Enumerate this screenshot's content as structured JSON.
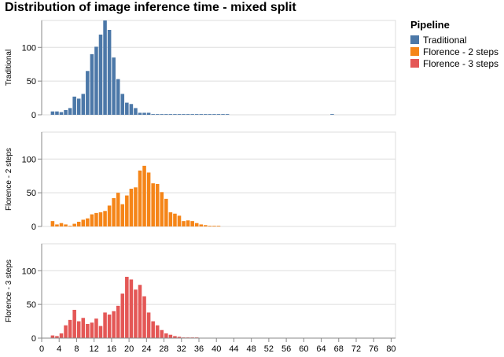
{
  "chart_data": {
    "type": "bar",
    "title": "Distribution of image inference time - mixed split",
    "x_ticks": [
      0,
      4,
      8,
      12,
      16,
      20,
      24,
      28,
      32,
      36,
      40,
      44,
      48,
      52,
      56,
      60,
      64,
      68,
      72,
      76,
      80
    ],
    "xlim": [
      0,
      81
    ],
    "ylim": [
      0,
      140
    ],
    "y_ticks": [
      0,
      50,
      100
    ],
    "bin_width": 1,
    "grid": true,
    "legend": {
      "title": "Pipeline",
      "placement": "right",
      "entries": [
        "Traditional",
        "Florence - 2 steps",
        "Florence - 3 steps"
      ]
    },
    "series": [
      {
        "name": "Traditional",
        "color": "#4c78a8",
        "facet_label": "Traditional",
        "x": [
          2,
          3,
          4,
          5,
          6,
          7,
          8,
          9,
          10,
          11,
          12,
          13,
          14,
          15,
          16,
          17,
          18,
          19,
          20,
          21,
          22,
          23,
          24,
          25,
          26,
          27,
          28,
          29,
          30,
          31,
          32,
          33,
          34,
          35,
          36,
          37,
          38,
          39,
          40,
          41,
          42,
          43,
          44,
          45,
          46,
          47,
          48,
          49,
          50,
          51,
          52,
          53,
          54,
          55,
          56,
          57,
          58,
          59,
          60,
          61,
          62,
          63,
          64,
          65,
          66,
          67,
          68,
          69,
          70,
          71,
          72,
          73,
          74,
          75,
          76,
          77,
          78,
          79,
          80
        ],
        "values": [
          5,
          5,
          4,
          7,
          10,
          27,
          24,
          31,
          65,
          90,
          101,
          119,
          140,
          126,
          85,
          53,
          31,
          18,
          16,
          10,
          3,
          3,
          3,
          1,
          1,
          1,
          1,
          1,
          1,
          1,
          1,
          1,
          1,
          1,
          1,
          1,
          1,
          1,
          1,
          1,
          1,
          0,
          0,
          0,
          0,
          0,
          0,
          0,
          0,
          0,
          0,
          0,
          0,
          0,
          0,
          0,
          0,
          0,
          0,
          0,
          0,
          0,
          0,
          0,
          1,
          0,
          0,
          0,
          0,
          0,
          0,
          0,
          0,
          0,
          0,
          0,
          0,
          0,
          0
        ]
      },
      {
        "name": "Florence - 2 steps",
        "color": "#f58518",
        "facet_label": "Florence - 2 steps",
        "x": [
          2,
          3,
          4,
          5,
          6,
          7,
          8,
          9,
          10,
          11,
          12,
          13,
          14,
          15,
          16,
          17,
          18,
          19,
          20,
          21,
          22,
          23,
          24,
          25,
          26,
          27,
          28,
          29,
          30,
          31,
          32,
          33,
          34,
          35,
          36,
          37,
          38,
          39,
          40,
          41,
          42,
          43,
          44,
          45,
          46,
          47,
          48,
          49,
          50,
          51,
          52,
          53,
          54,
          55,
          56,
          57,
          58,
          59,
          60,
          61,
          62,
          63,
          64,
          65,
          66,
          67,
          68,
          69,
          70,
          71,
          72,
          73,
          74,
          75,
          76,
          77,
          78,
          79,
          80
        ],
        "values": [
          8,
          3,
          5,
          3,
          1,
          4,
          7,
          10,
          12,
          18,
          20,
          21,
          23,
          31,
          42,
          50,
          33,
          46,
          56,
          58,
          83,
          90,
          80,
          64,
          63,
          51,
          41,
          21,
          19,
          16,
          8,
          9,
          8,
          5,
          3,
          2,
          1,
          1,
          1,
          0,
          0,
          0,
          0,
          0,
          0,
          0,
          0,
          0,
          0,
          0,
          0,
          0,
          0,
          0,
          0,
          0,
          0,
          0,
          0,
          0,
          0,
          0,
          0,
          0,
          0,
          0,
          0,
          0,
          0,
          0,
          0,
          0,
          0,
          0,
          0,
          0,
          0,
          0,
          0
        ]
      },
      {
        "name": "Florence - 3 steps",
        "color": "#e45756",
        "facet_label": "Florence - 3 steps",
        "x": [
          2,
          3,
          4,
          5,
          6,
          7,
          8,
          9,
          10,
          11,
          12,
          13,
          14,
          15,
          16,
          17,
          18,
          19,
          20,
          21,
          22,
          23,
          24,
          25,
          26,
          27,
          28,
          29,
          30,
          31,
          32,
          33,
          34,
          35,
          36,
          37,
          38,
          39,
          40,
          41,
          42,
          43,
          44,
          45,
          46,
          47,
          48,
          49,
          50,
          51,
          52,
          53,
          54,
          55,
          56,
          57,
          58,
          59,
          60,
          61,
          62,
          63,
          64,
          65,
          66,
          67,
          68,
          69,
          70,
          71,
          72,
          73,
          74,
          75,
          76,
          77,
          78,
          79,
          80
        ],
        "values": [
          4,
          3,
          7,
          19,
          27,
          42,
          25,
          30,
          21,
          23,
          29,
          18,
          38,
          35,
          40,
          48,
          66,
          91,
          87,
          72,
          79,
          62,
          38,
          25,
          19,
          12,
          7,
          5,
          3,
          2,
          1,
          1,
          1,
          1,
          0,
          0,
          0,
          0,
          0,
          0,
          0,
          0,
          0,
          0,
          0,
          0,
          0,
          0,
          0,
          0,
          0,
          0,
          0,
          0,
          0,
          0,
          0,
          0,
          0,
          0,
          0,
          0,
          0,
          0,
          0,
          0,
          0,
          0,
          0,
          0,
          0,
          0,
          0,
          0,
          0,
          0,
          0,
          0,
          0
        ]
      }
    ]
  }
}
